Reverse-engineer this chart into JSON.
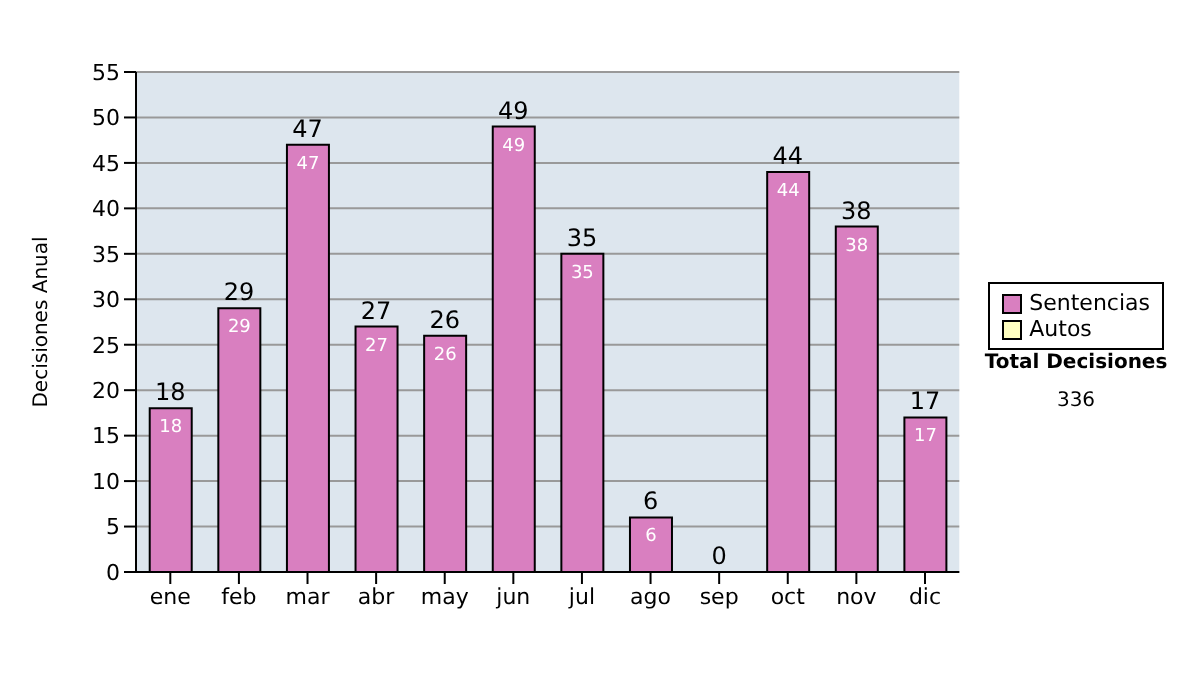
{
  "chart_data": {
    "type": "bar",
    "stacked": true,
    "ylabel": "Decisiones Anual",
    "categories": [
      "ene",
      "feb",
      "mar",
      "abr",
      "may",
      "jun",
      "jul",
      "ago",
      "sep",
      "oct",
      "nov",
      "dic"
    ],
    "series": [
      {
        "name": "Sentencias",
        "color": "#d97fc0",
        "values": [
          18,
          29,
          47,
          27,
          26,
          49,
          35,
          6,
          0,
          44,
          38,
          17
        ],
        "value_labels": [
          "18",
          "29",
          "47",
          "27",
          "26",
          "49",
          "35",
          "6",
          null,
          "44",
          "38",
          "17"
        ]
      },
      {
        "name": "Autos",
        "color": "#ffffc0",
        "values": [
          null,
          null,
          null,
          null,
          null,
          null,
          null,
          null,
          null,
          null,
          null,
          null
        ]
      }
    ],
    "totals": [
      "18",
      "29",
      "47",
      "27",
      "26",
      "49",
      "35",
      "6",
      "0",
      "44",
      "38",
      "17"
    ],
    "ylim": [
      0,
      55
    ],
    "yticks": [
      0,
      5,
      10,
      15,
      20,
      25,
      30,
      35,
      40,
      45,
      50,
      55
    ],
    "grid": "y",
    "legend": "right",
    "annotations": [
      "Total Decisiones",
      "336"
    ]
  }
}
